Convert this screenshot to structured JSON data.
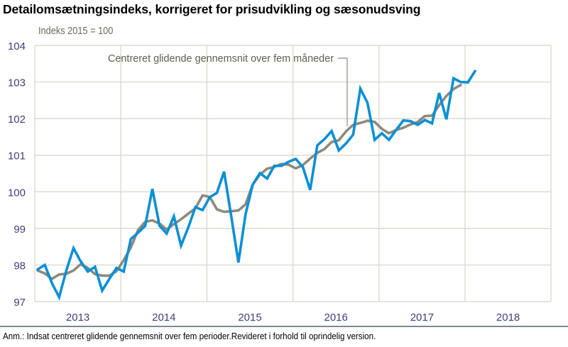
{
  "header": {
    "title": "Detailomsætningsindeks, korrigeret for prisudvikling og sæsonudsving",
    "unit_label": "Indeks 2015 = 100"
  },
  "footer": {
    "note": "Anm.: Indsat centreret glidende gennemsnit over fem perioder.Revideret i forhold til oprindelig version."
  },
  "colors": {
    "index_line": "#0a8fd4",
    "moving_avg_line": "#8c8a7c",
    "grid": "#d6d4c8",
    "tick_text": "#3f3f7a"
  },
  "chart_data": {
    "type": "line",
    "title": "Detailomsætningsindeks, korrigeret for prisudvikling og sæsonudsving",
    "ylabel": "Indeks 2015 = 100",
    "xlabel": "",
    "ylim": [
      97,
      104
    ],
    "yticks": [
      97,
      98,
      99,
      100,
      101,
      102,
      103,
      104
    ],
    "xticks": [
      "2013",
      "2014",
      "2015",
      "2016",
      "2017",
      "2018"
    ],
    "grid": true,
    "legend": "annotation",
    "annotation": "Centreret glidende gennemsnit over fem måneder",
    "x_start": "2013-01",
    "frequency": "monthly",
    "series": [
      {
        "name": "Detailomsætningsindeks",
        "values": [
          97.88,
          98.0,
          97.5,
          97.12,
          97.85,
          98.46,
          98.1,
          97.82,
          97.95,
          97.3,
          97.62,
          97.92,
          97.82,
          98.71,
          98.88,
          99.07,
          100.08,
          99.07,
          98.86,
          99.33,
          98.53,
          99.02,
          99.58,
          99.5,
          99.85,
          99.97,
          100.55,
          99.33,
          98.07,
          99.39,
          100.2,
          100.51,
          100.36,
          100.71,
          100.71,
          100.82,
          100.9,
          100.67,
          100.05,
          101.27,
          101.44,
          101.66,
          101.13,
          101.32,
          101.56,
          102.82,
          102.43,
          101.42,
          101.6,
          101.42,
          101.69,
          101.95,
          101.93,
          101.83,
          101.96,
          101.87,
          102.7,
          101.98,
          103.1,
          103.0,
          102.99,
          103.3
        ]
      },
      {
        "name": "Centreret glidende gennemsnit over fem måneder",
        "values": [
          97.85,
          97.77,
          97.62,
          97.74,
          97.76,
          97.85,
          98.02,
          97.92,
          97.75,
          97.71,
          97.71,
          97.83,
          98.13,
          98.48,
          98.95,
          99.18,
          99.22,
          99.13,
          98.97,
          99.12,
          99.25,
          99.4,
          99.55,
          99.9,
          99.86,
          99.52,
          99.45,
          99.47,
          99.49,
          99.66,
          100.2,
          100.47,
          100.63,
          100.68,
          100.76,
          100.74,
          100.64,
          100.73,
          100.91,
          101.06,
          101.17,
          101.36,
          101.41,
          101.65,
          101.83,
          101.88,
          101.94,
          101.91,
          101.72,
          101.6,
          101.69,
          101.75,
          101.84,
          101.91,
          102.07,
          102.08,
          102.37,
          102.62,
          102.81,
          102.92
        ]
      }
    ]
  }
}
